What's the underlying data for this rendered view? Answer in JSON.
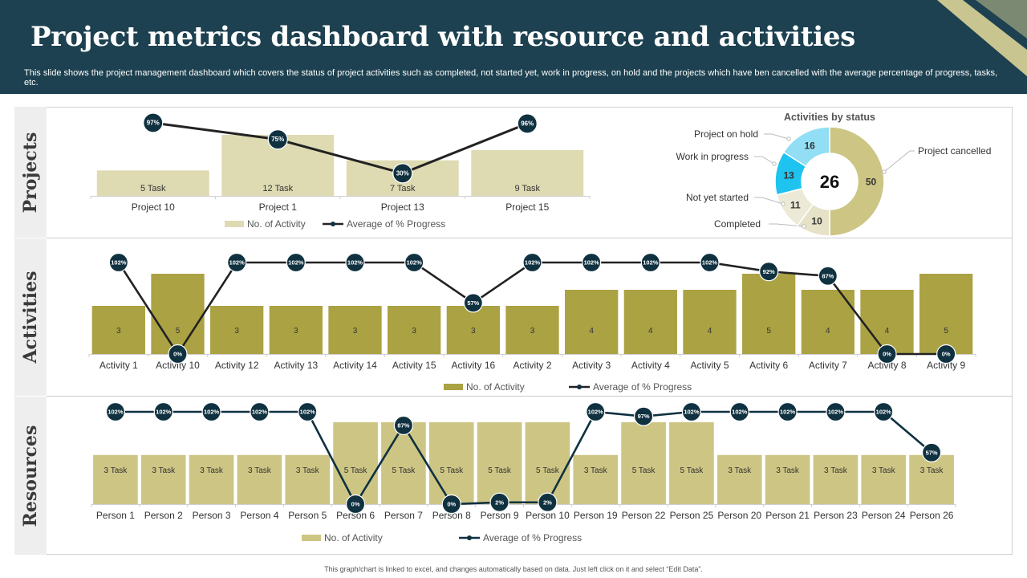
{
  "title": "Project metrics dashboard with resource and activities",
  "subtitle": "This slide shows the project management dashboard which covers the status of project activities such as completed, not started yet, work in progress, on hold and the projects which have ben cancelled with the average percentage of progress, tasks, etc.",
  "footnote": "This graph/chart is linked to excel, and changes automatically based on data. Just left click on it and select “Edit Data”.",
  "panels": {
    "projects": "Projects",
    "activities": "Activities",
    "resources": "Resources"
  },
  "colors": {
    "header": "#1d4150",
    "bar_light": "#dedbb3",
    "bar_olive": "#aba244",
    "bar_khaki": "#cdc584",
    "line": "#222222",
    "marker": "#0f3140",
    "cyan": "#1ec3f0",
    "light_blue": "#92def5"
  },
  "chart_data": [
    {
      "id": "projects",
      "type": "bar",
      "categories": [
        "Project 10",
        "Project 1",
        "Project 13",
        "Project 15"
      ],
      "series": [
        {
          "name": "No. of Activity",
          "type": "bar",
          "values": [
            5,
            12,
            7,
            9
          ],
          "labels": [
            "5 Task",
            "12 Task",
            "7 Task",
            "9 Task"
          ]
        },
        {
          "name": "Average of % Progress",
          "type": "line",
          "values": [
            97,
            75,
            30,
            96
          ],
          "labels": [
            "97%",
            "75%",
            "30%",
            "96%"
          ]
        }
      ],
      "legend": "bottom",
      "grid": false
    },
    {
      "id": "activities_by_status",
      "type": "pie",
      "title": "Activities  by status",
      "center_label": "26",
      "slices": [
        {
          "name": "Project cancelled",
          "value": 50
        },
        {
          "name": "Completed",
          "value": 10
        },
        {
          "name": "Not yet started",
          "value": 11
        },
        {
          "name": "Work in progress",
          "value": 13
        },
        {
          "name": "Project on hold",
          "value": 16
        }
      ]
    },
    {
      "id": "activities",
      "type": "bar",
      "categories": [
        "Activity 1",
        "Activity 10",
        "Activity 12",
        "Activity 13",
        "Activity 14",
        "Activity 15",
        "Activity 16",
        "Activity 2",
        "Activity 3",
        "Activity 4",
        "Activity 5",
        "Activity 6",
        "Activity 7",
        "Activity 8",
        "Activity 9"
      ],
      "series": [
        {
          "name": "No. of Activity",
          "type": "bar",
          "values": [
            3,
            5,
            3,
            3,
            3,
            3,
            3,
            3,
            4,
            4,
            4,
            5,
            4,
            4,
            5
          ],
          "labels": [
            "3",
            "5",
            "3",
            "3",
            "3",
            "3",
            "3",
            "3",
            "4",
            "4",
            "4",
            "5",
            "4",
            "4",
            "5"
          ]
        },
        {
          "name": "Average of % Progress",
          "type": "line",
          "values": [
            102,
            0,
            102,
            102,
            102,
            102,
            57,
            102,
            102,
            102,
            102,
            92,
            87,
            0,
            0
          ],
          "labels": [
            "102%",
            "0%",
            "102%",
            "102%",
            "102%",
            "102%",
            "57%",
            "102%",
            "102%",
            "102%",
            "102%",
            "92%",
            "87%",
            "0%",
            "0%"
          ]
        }
      ],
      "legend": "bottom",
      "grid": false
    },
    {
      "id": "resources",
      "type": "bar",
      "categories": [
        "Person 1",
        "Person 2",
        "Person 3",
        "Person 4",
        "Person 5",
        "Person 6",
        "Person 7",
        "Person 8",
        "Person 9",
        "Person 10",
        "Person 19",
        "Person 22",
        "Person 25",
        "Person 20",
        "Person 21",
        "Person 23",
        "Person 24",
        "Person 26"
      ],
      "series": [
        {
          "name": "No. of Activity",
          "type": "bar",
          "values": [
            3,
            3,
            3,
            3,
            3,
            5,
            5,
            5,
            5,
            5,
            3,
            5,
            5,
            3,
            3,
            3,
            3,
            3
          ],
          "labels": [
            "3 Task",
            "3 Task",
            "3 Task",
            "3 Task",
            "3 Task",
            "5 Task",
            "5 Task",
            "5 Task",
            "5 Task",
            "5 Task",
            "3 Task",
            "5 Task",
            "5 Task",
            "3 Task",
            "3 Task",
            "3 Task",
            "3 Task",
            "3 Task"
          ]
        },
        {
          "name": "Average of % Progress",
          "type": "line",
          "values": [
            102,
            102,
            102,
            102,
            102,
            0,
            87,
            0,
            2,
            2,
            102,
            97,
            102,
            102,
            102,
            102,
            102,
            57
          ],
          "labels": [
            "102%",
            "102%",
            "102%",
            "102%",
            "102%",
            "0%",
            "87%",
            "0%",
            "2%",
            "2%",
            "102%",
            "97%",
            "102%",
            "102%",
            "102%",
            "102%",
            "102%",
            "57%"
          ]
        }
      ],
      "legend": "bottom",
      "grid": false
    }
  ]
}
